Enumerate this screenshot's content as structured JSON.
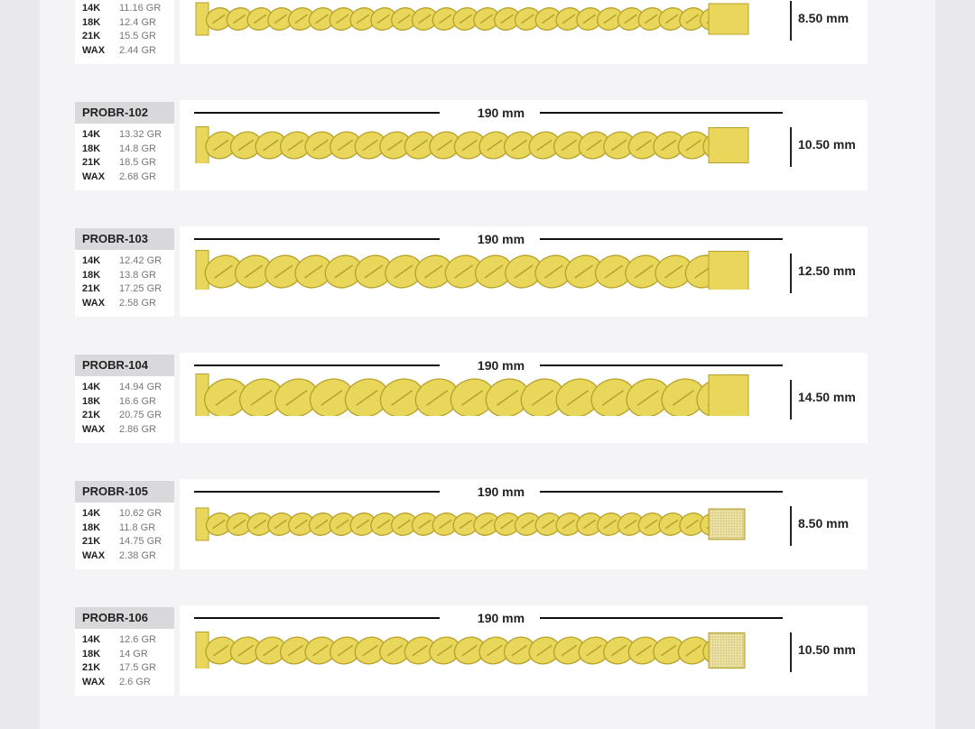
{
  "colors": {
    "gold": "#e8d75a",
    "gold_dark": "#b8a12a",
    "label_bg": "#d9d9db"
  },
  "rows": [
    {
      "id": "",
      "length": "",
      "width": "8.50 mm",
      "width_mm": 8.5,
      "clasp": "plain",
      "weights": [
        {
          "k": "14K",
          "v": "11.16 GR"
        },
        {
          "k": "18K",
          "v": "12.4 GR"
        },
        {
          "k": "21K",
          "v": "15.5 GR"
        },
        {
          "k": "WAX",
          "v": "2.44 GR"
        }
      ]
    },
    {
      "id": "PROBR-102",
      "length": "190 mm",
      "width": "10.50 mm",
      "width_mm": 10.5,
      "clasp": "plain",
      "weights": [
        {
          "k": "14K",
          "v": "13.32 GR"
        },
        {
          "k": "18K",
          "v": "14.8 GR"
        },
        {
          "k": "21K",
          "v": "18.5 GR"
        },
        {
          "k": "WAX",
          "v": "2.68 GR"
        }
      ]
    },
    {
      "id": "PROBR-103",
      "length": "190 mm",
      "width": "12.50 mm",
      "width_mm": 12.5,
      "clasp": "plain",
      "weights": [
        {
          "k": "14K",
          "v": "12.42 GR"
        },
        {
          "k": "18K",
          "v": "13.8 GR"
        },
        {
          "k": "21K",
          "v": "17.25 GR"
        },
        {
          "k": "WAX",
          "v": "2.58 GR"
        }
      ]
    },
    {
      "id": "PROBR-104",
      "length": "190 mm",
      "width": "14.50 mm",
      "width_mm": 14.5,
      "clasp": "plain",
      "weights": [
        {
          "k": "14K",
          "v": "14.94 GR"
        },
        {
          "k": "18K",
          "v": "16.6 GR"
        },
        {
          "k": "21K",
          "v": "20.75 GR"
        },
        {
          "k": "WAX",
          "v": "2.86 GR"
        }
      ]
    },
    {
      "id": "PROBR-105",
      "length": "190 mm",
      "width": "8.50 mm",
      "width_mm": 8.5,
      "clasp": "pave",
      "weights": [
        {
          "k": "14K",
          "v": "10.62 GR"
        },
        {
          "k": "18K",
          "v": "11.8 GR"
        },
        {
          "k": "21K",
          "v": "14.75 GR"
        },
        {
          "k": "WAX",
          "v": "2.38 GR"
        }
      ]
    },
    {
      "id": "PROBR-106",
      "length": "190 mm",
      "width": "10.50 mm",
      "width_mm": 10.5,
      "clasp": "pave",
      "weights": [
        {
          "k": "14K",
          "v": "12.6 GR"
        },
        {
          "k": "18K",
          "v": "14 GR"
        },
        {
          "k": "21K",
          "v": "17.5 GR"
        },
        {
          "k": "WAX",
          "v": "2.6 GR"
        }
      ]
    }
  ]
}
